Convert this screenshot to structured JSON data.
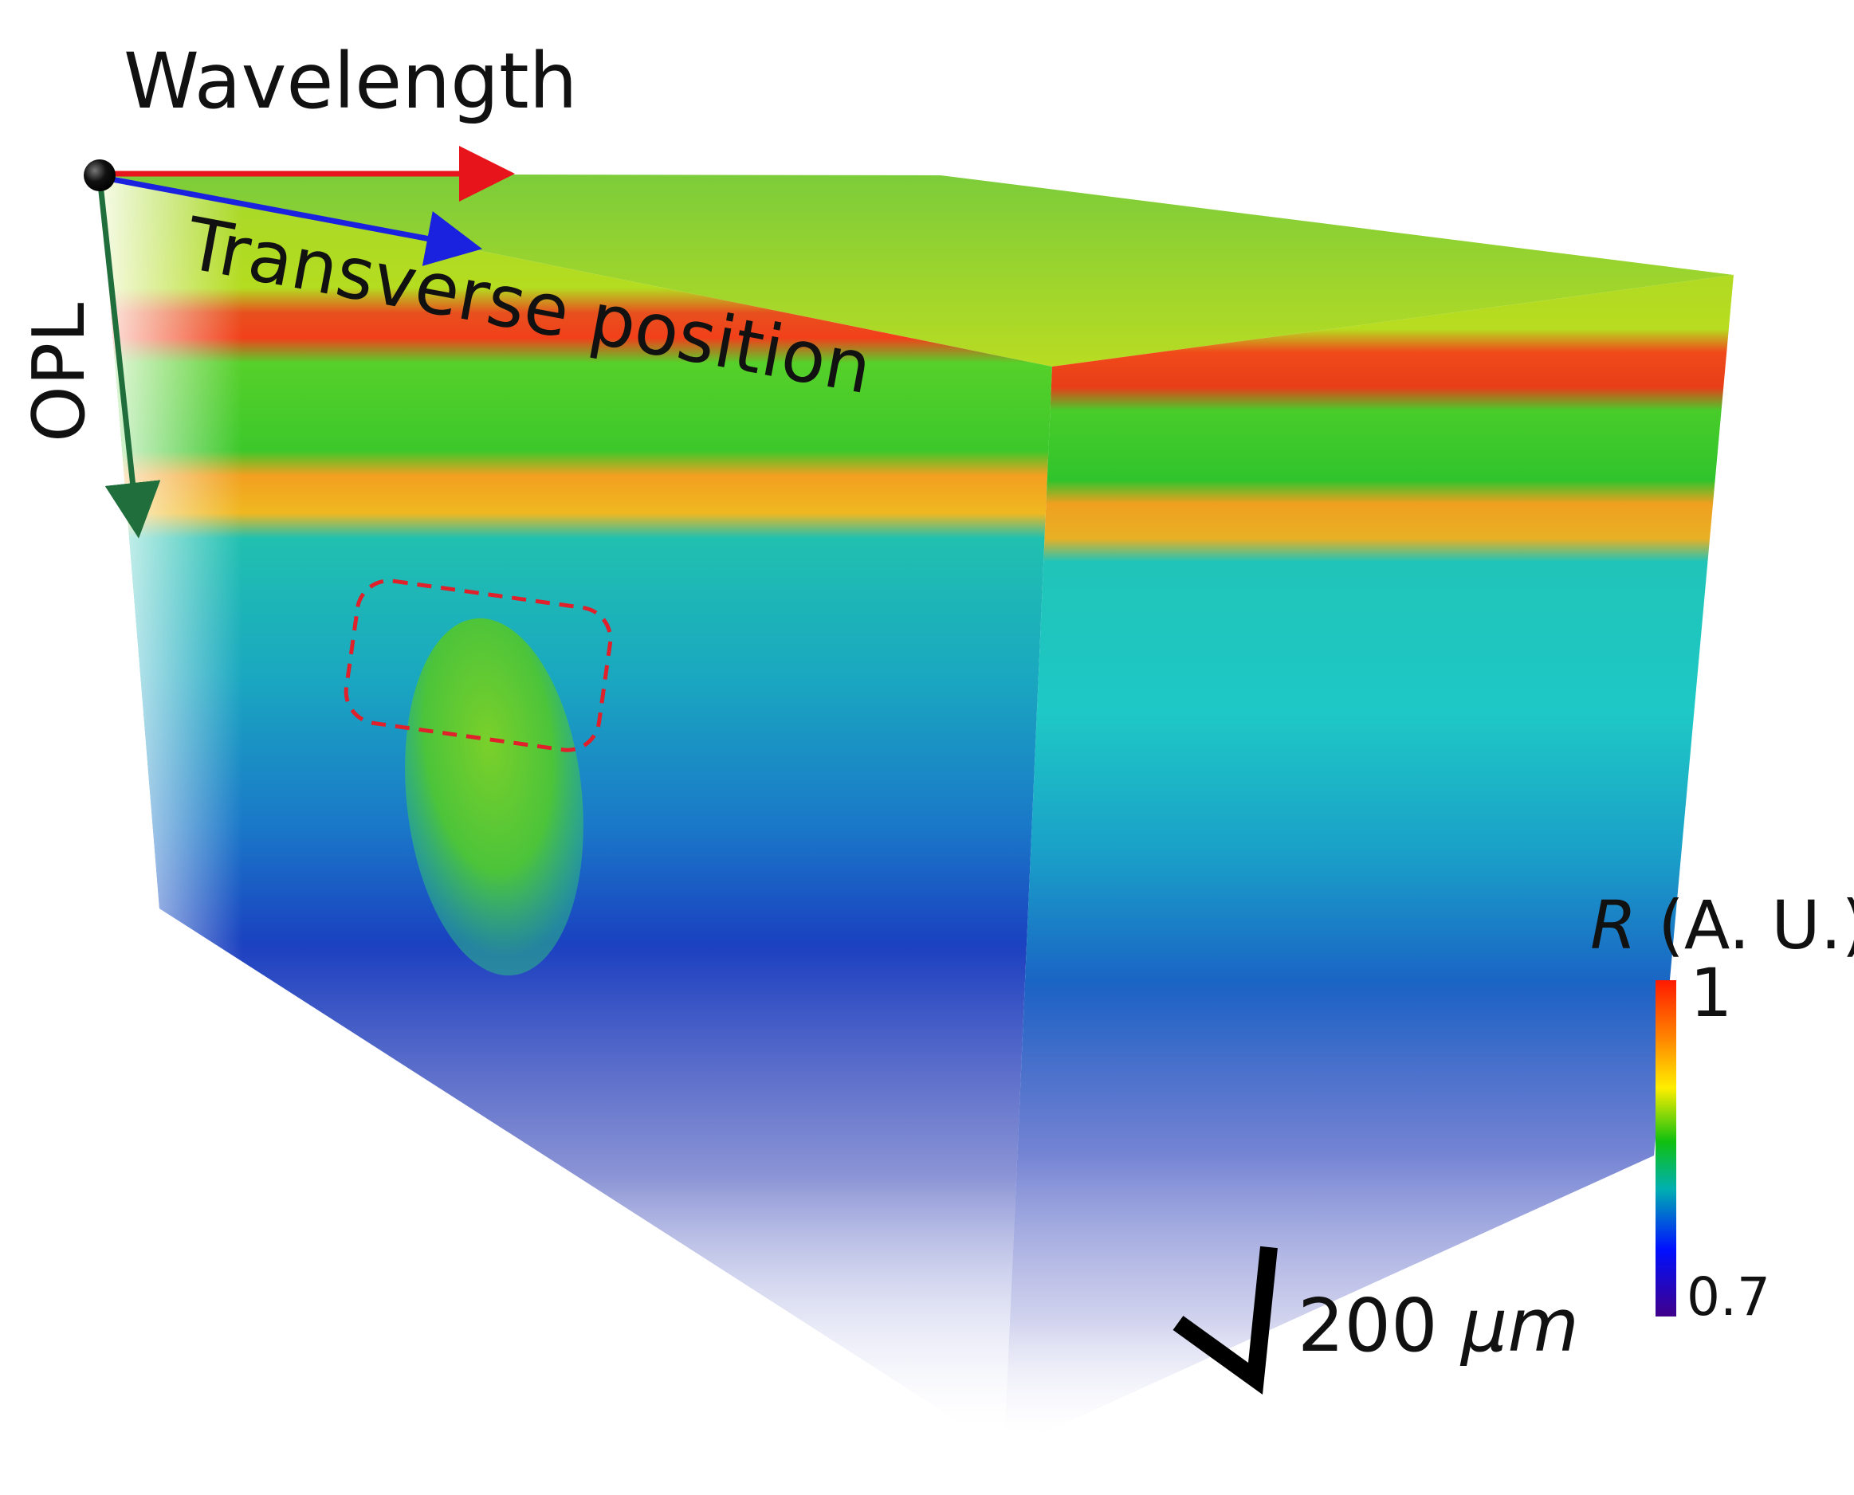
{
  "axes": {
    "wavelength_label": "Wavelength",
    "transverse_label": "Transverse position",
    "opl_label": "OPL",
    "wavelength_color": "#e8141c",
    "transverse_color": "#1a22e0",
    "opl_color": "#1f6e3c"
  },
  "colorbar": {
    "title_var": "R",
    "title_unit": " (A. U.)",
    "max_label": "1",
    "min_label": "0.7",
    "colormap": [
      "#ff1a00",
      "#ffa500",
      "#ffff00",
      "#00cc00",
      "#00c8c8",
      "#0000ff",
      "#3a0090"
    ]
  },
  "scale_bar": {
    "value": "200",
    "unit": "μm"
  },
  "highlight_color": "#e0202a"
}
